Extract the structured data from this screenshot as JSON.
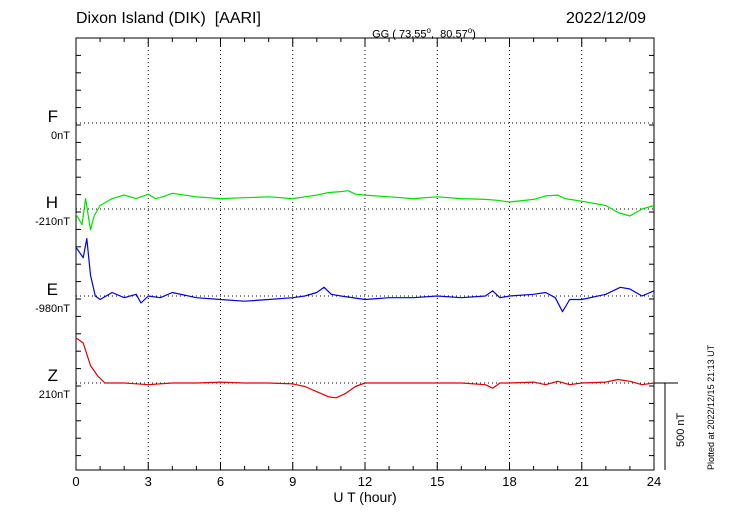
{
  "header": {
    "station": "Dixon Island (DIK)  [AARI]",
    "coords": "GG ( 73.55",
    "coords_deg_mark": "o",
    "coords_sep": ",  80.57",
    "coords_deg_mark2": "o",
    "coords_end": ")",
    "date": "2022/12/09"
  },
  "plotted_note": "Plotted at 2022/12/15 21:13 UT",
  "scale_label": "500 nT",
  "colors": {
    "F": "#f0a000",
    "H": "#00e000",
    "E": "#0000e0",
    "Z": "#e00000",
    "grid": "#000000"
  },
  "chart_data": {
    "type": "line",
    "xlabel": "U T (hour)",
    "xticks": [
      "0",
      "3",
      "6",
      "9",
      "12",
      "15",
      "18",
      "21",
      "24"
    ],
    "xlim": [
      0,
      24
    ],
    "scale_nT": 500,
    "channels": [
      {
        "name": "F",
        "baseline": "0nT",
        "points": []
      },
      {
        "name": "H",
        "baseline": "-210nT",
        "points": [
          [
            0,
            -30
          ],
          [
            0.25,
            -90
          ],
          [
            0.4,
            60
          ],
          [
            0.6,
            -120
          ],
          [
            0.75,
            -40
          ],
          [
            1,
            20
          ],
          [
            1.5,
            60
          ],
          [
            2,
            80
          ],
          [
            2.5,
            60
          ],
          [
            3,
            85
          ],
          [
            3.3,
            60
          ],
          [
            3.6,
            70
          ],
          [
            4,
            90
          ],
          [
            5,
            70
          ],
          [
            6,
            60
          ],
          [
            7,
            65
          ],
          [
            8,
            70
          ],
          [
            9,
            60
          ],
          [
            9.5,
            70
          ],
          [
            10,
            80
          ],
          [
            10.5,
            95
          ],
          [
            11,
            100
          ],
          [
            11.3,
            105
          ],
          [
            11.6,
            85
          ],
          [
            12,
            80
          ],
          [
            13,
            70
          ],
          [
            14,
            60
          ],
          [
            15,
            70
          ],
          [
            16,
            60
          ],
          [
            17,
            55
          ],
          [
            17.5,
            50
          ],
          [
            18,
            40
          ],
          [
            19,
            55
          ],
          [
            19.5,
            75
          ],
          [
            20,
            80
          ],
          [
            20.3,
            60
          ],
          [
            21,
            45
          ],
          [
            22,
            20
          ],
          [
            22.5,
            -20
          ],
          [
            23,
            -40
          ],
          [
            23.5,
            0
          ],
          [
            24,
            20
          ]
        ]
      },
      {
        "name": "E",
        "baseline": "-980nT",
        "points": [
          [
            0,
            280
          ],
          [
            0.3,
            220
          ],
          [
            0.45,
            330
          ],
          [
            0.6,
            120
          ],
          [
            0.8,
            0
          ],
          [
            1,
            -20
          ],
          [
            1.5,
            20
          ],
          [
            2,
            -10
          ],
          [
            2.5,
            10
          ],
          [
            2.7,
            -40
          ],
          [
            3,
            0
          ],
          [
            3.5,
            -10
          ],
          [
            4,
            20
          ],
          [
            5,
            -10
          ],
          [
            6,
            -20
          ],
          [
            7,
            -30
          ],
          [
            8,
            -20
          ],
          [
            9,
            -10
          ],
          [
            9.5,
            0
          ],
          [
            10,
            20
          ],
          [
            10.3,
            50
          ],
          [
            10.6,
            10
          ],
          [
            11,
            0
          ],
          [
            12,
            -20
          ],
          [
            13,
            -10
          ],
          [
            14,
            -10
          ],
          [
            15,
            0
          ],
          [
            16,
            -10
          ],
          [
            17,
            0
          ],
          [
            17.3,
            30
          ],
          [
            17.6,
            -10
          ],
          [
            18,
            0
          ],
          [
            19,
            10
          ],
          [
            19.5,
            20
          ],
          [
            19.9,
            -10
          ],
          [
            20.2,
            -90
          ],
          [
            20.5,
            -20
          ],
          [
            21,
            -20
          ],
          [
            22,
            10
          ],
          [
            22.6,
            50
          ],
          [
            23,
            40
          ],
          [
            23.5,
            0
          ],
          [
            24,
            30
          ]
        ]
      },
      {
        "name": "Z",
        "baseline": "210nT",
        "points": [
          [
            0,
            260
          ],
          [
            0.3,
            230
          ],
          [
            0.6,
            100
          ],
          [
            0.9,
            40
          ],
          [
            1.2,
            0
          ],
          [
            2,
            0
          ],
          [
            3,
            -10
          ],
          [
            4,
            0
          ],
          [
            5,
            0
          ],
          [
            6,
            5
          ],
          [
            7,
            0
          ],
          [
            8,
            0
          ],
          [
            9,
            -5
          ],
          [
            9.5,
            -20
          ],
          [
            10,
            -50
          ],
          [
            10.5,
            -80
          ],
          [
            10.8,
            -85
          ],
          [
            11.2,
            -60
          ],
          [
            11.6,
            -20
          ],
          [
            12,
            0
          ],
          [
            13,
            0
          ],
          [
            14,
            0
          ],
          [
            15,
            0
          ],
          [
            16,
            0
          ],
          [
            17,
            -10
          ],
          [
            17.3,
            -30
          ],
          [
            17.6,
            0
          ],
          [
            18,
            0
          ],
          [
            19,
            5
          ],
          [
            19.5,
            -10
          ],
          [
            20,
            10
          ],
          [
            20.5,
            -10
          ],
          [
            21,
            0
          ],
          [
            22,
            5
          ],
          [
            22.5,
            20
          ],
          [
            23,
            10
          ],
          [
            23.5,
            -10
          ],
          [
            24,
            0
          ]
        ]
      }
    ]
  }
}
